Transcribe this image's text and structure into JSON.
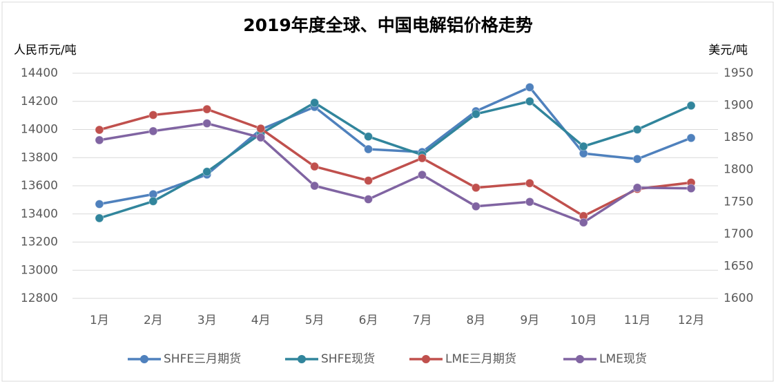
{
  "chart_data": {
    "type": "line",
    "title": "2019年度全球、中国电解铝价格走势",
    "ylabel": "人民币元/吨",
    "y2label": "美元/吨",
    "categories": [
      "1月",
      "2月",
      "3月",
      "4月",
      "5月",
      "6月",
      "7月",
      "8月",
      "9月",
      "10月",
      "11月",
      "12月"
    ],
    "series": [
      {
        "name": "SHFE三月期货",
        "color": "#4f81bd",
        "values": [
          13470,
          13540,
          13680,
          14000,
          14160,
          13860,
          13840,
          14130,
          14300,
          13830,
          13790,
          13940
        ]
      },
      {
        "name": "SHFE现货",
        "color": "#31859c",
        "values": [
          13370,
          13490,
          13700,
          13970,
          14190,
          13950,
          13820,
          14110,
          14200,
          13880,
          14000,
          14170
        ]
      },
      {
        "name": "LME三月期货",
        "color": "#c0504d",
        "axis": "y2",
        "values": [
          1862,
          1885,
          1894,
          1864,
          1805,
          1783,
          1818,
          1772,
          1779,
          1728,
          1770,
          1780
        ]
      },
      {
        "name": "LME现货",
        "color": "#8064a2",
        "axis": "y2",
        "values": [
          1846,
          1860,
          1872,
          1850,
          1775,
          1754,
          1792,
          1743,
          1750,
          1718,
          1772,
          1771
        ]
      }
    ],
    "ylim": [
      12800,
      14400
    ],
    "yticks": [
      12800,
      13000,
      13200,
      13400,
      13600,
      13800,
      14000,
      14200,
      14400
    ],
    "y2lim": [
      1600,
      1950
    ],
    "y2ticks": [
      1600,
      1650,
      1700,
      1750,
      1800,
      1850,
      1900,
      1950
    ],
    "grid": true,
    "legend": "bottom"
  }
}
